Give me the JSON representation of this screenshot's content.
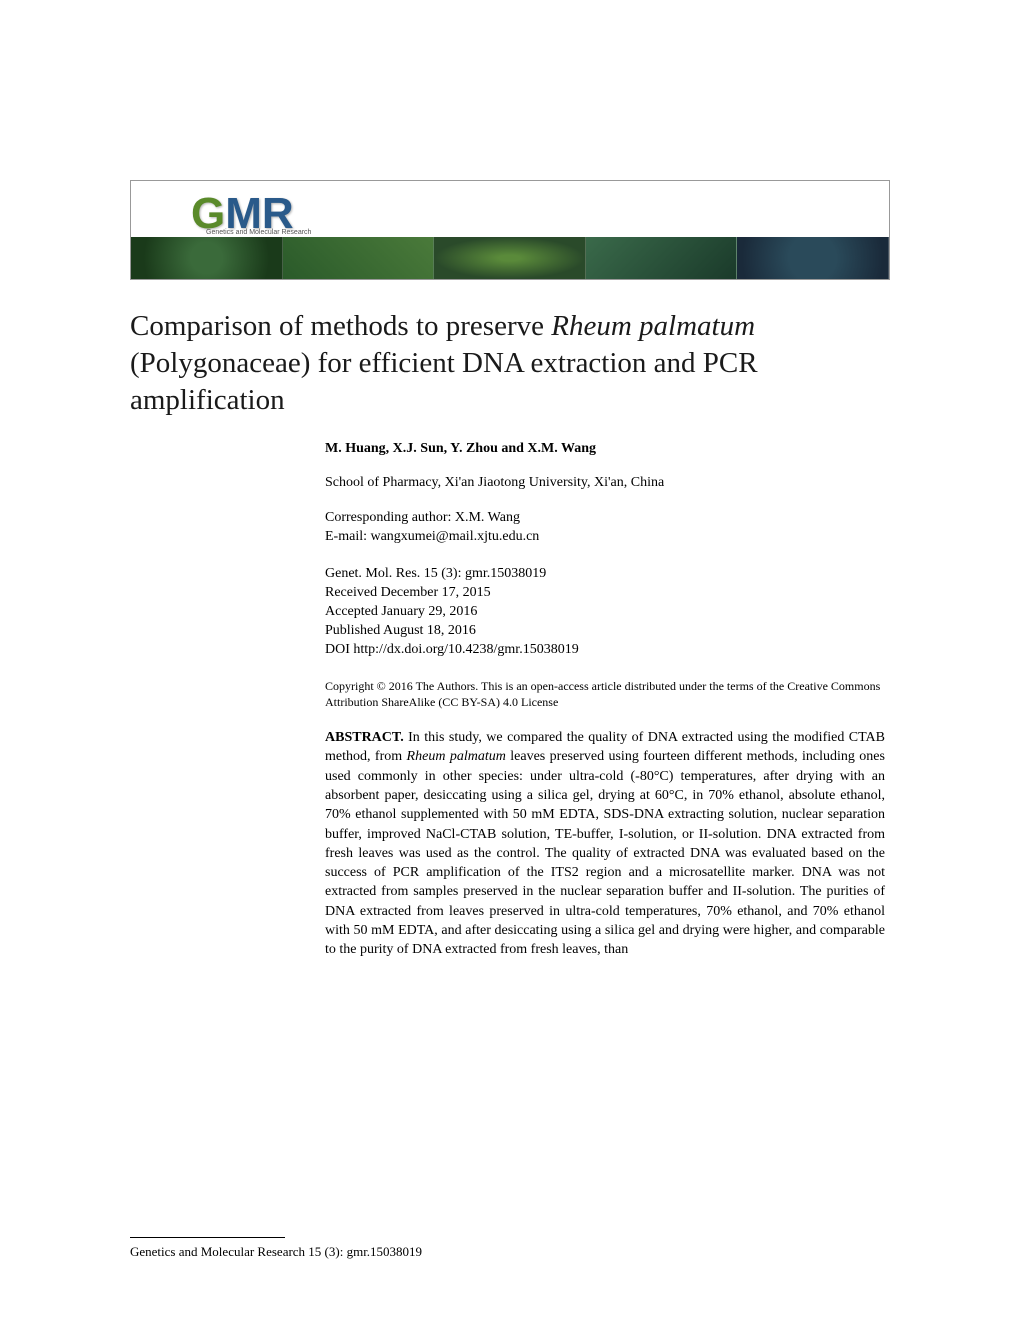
{
  "banner": {
    "logo_g": "G",
    "logo_mr": "MR",
    "logo_subtitle": "Genetics and Molecular Research"
  },
  "title": {
    "part1": "Comparison of methods to preserve ",
    "italic1": "Rheum palmatum",
    "part2": " (Polygonaceae) for efficient DNA extraction and PCR amplification"
  },
  "authors": "M. Huang, X.J. Sun, Y. Zhou and X.M. Wang",
  "affiliation": "School of Pharmacy, Xi'an Jiaotong University, Xi'an, China",
  "corresponding": {
    "line1": "Corresponding author: X.M. Wang",
    "line2": "E-mail: wangxumei@mail.xjtu.edu.cn"
  },
  "pub": {
    "journal": "Genet. Mol. Res. 15 (3): gmr.15038019",
    "received": "Received December 17, 2015",
    "accepted": "Accepted January 29, 2016",
    "published": "Published August 18, 2016",
    "doi": "DOI http://dx.doi.org/10.4238/gmr.15038019"
  },
  "copyright": "Copyright © 2016 The Authors. This is an open-access article distributed under the terms of the Creative Commons Attribution ShareAlike (CC BY-SA) 4.0 License",
  "abstract": {
    "label": "ABSTRACT.",
    "p1": " In this study, we compared the quality of DNA extracted using the modified CTAB method, from ",
    "italic1": "Rheum palmatum",
    "p2": " leaves preserved using fourteen different methods, including ones used commonly in other species: under ultra-cold (-80°C) temperatures, after drying with an absorbent paper, desiccating using a silica gel, drying at 60°C, in 70% ethanol, absolute ethanol, 70% ethanol supplemented with 50 mM EDTA, SDS-DNA extracting solution, nuclear separation buffer, improved NaCl-CTAB solution, TE-buffer, I-solution, or II-solution. DNA extracted from fresh leaves was used as the control. The quality of extracted DNA was evaluated based on the success of PCR amplification of the ITS2 region and a microsatellite marker. DNA was not extracted from samples preserved in the nuclear separation buffer and II-solution. The purities of DNA extracted from leaves preserved in ultra-cold temperatures, 70% ethanol, and 70% ethanol with 50 mM EDTA, and after desiccating using a silica gel and drying were higher, and comparable to the purity of DNA extracted from fresh leaves, than"
  },
  "footer": "Genetics and Molecular Research 15 (3): gmr.15038019"
}
